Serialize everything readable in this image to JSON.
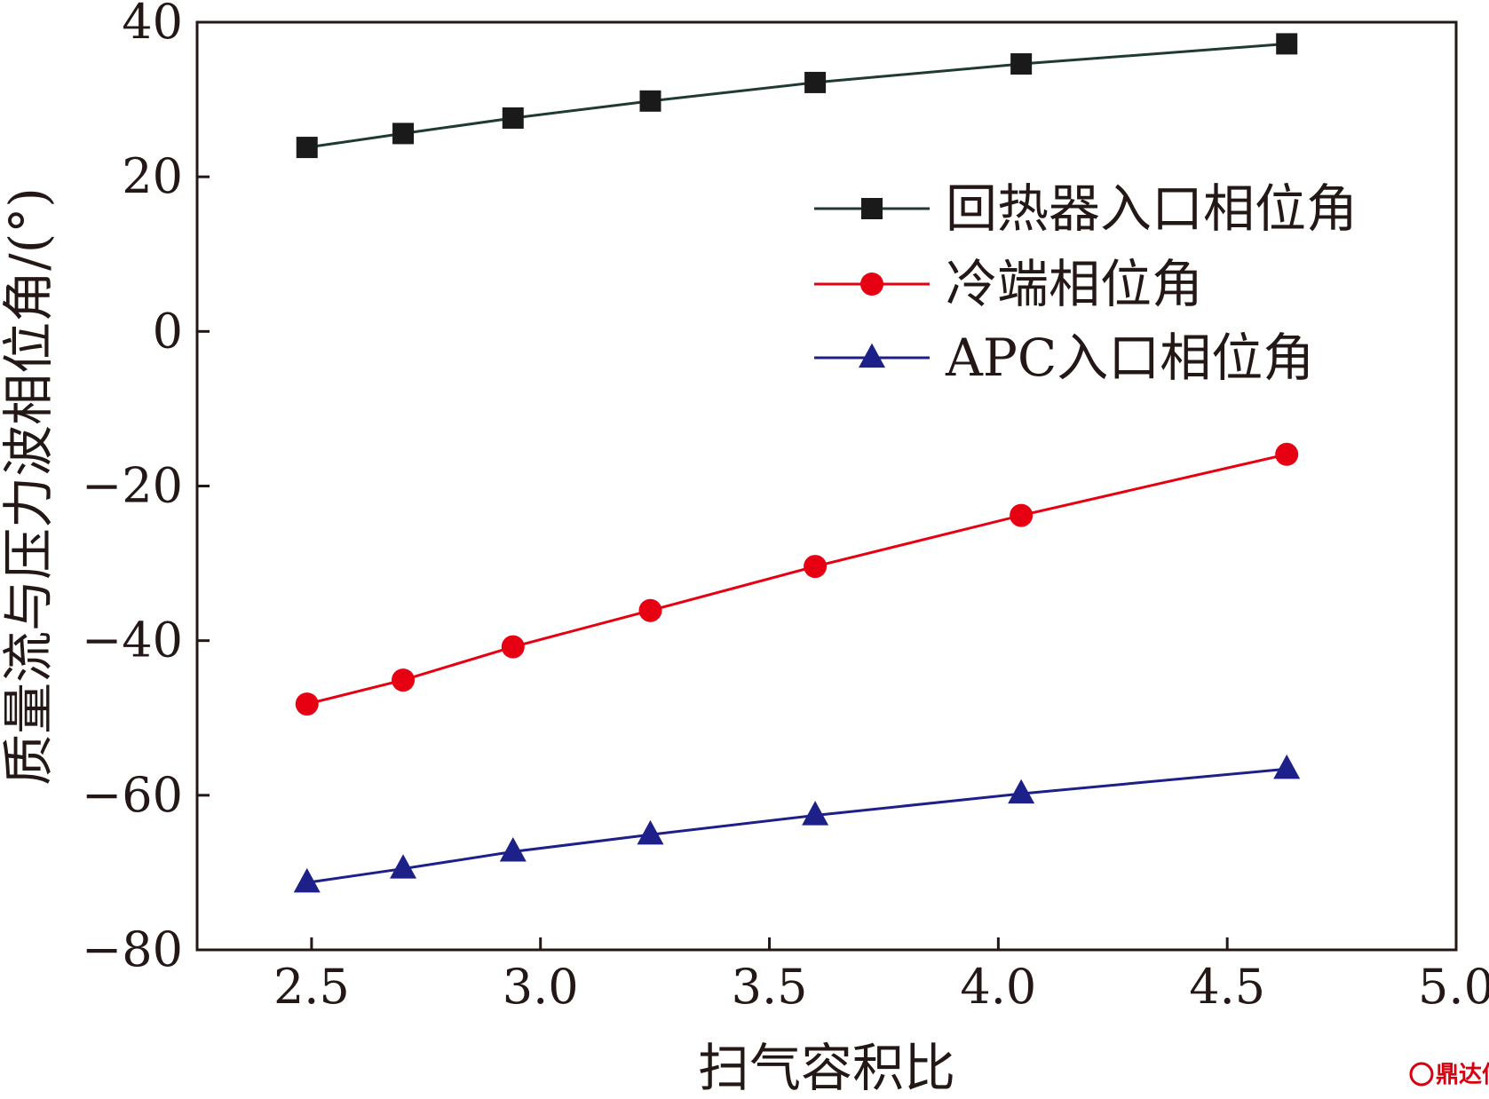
{
  "chart_data": {
    "type": "line",
    "xlabel": "扫气容积比",
    "ylabel": "质量流与压力波相位角/(°)",
    "xlim": [
      2.25,
      5.0
    ],
    "ylim": [
      -80,
      40
    ],
    "xticks": [
      "2.5",
      "3.0",
      "3.5",
      "4.0",
      "4.5",
      "5.0"
    ],
    "yticks": [
      "40",
      "20",
      "0",
      "−20",
      "−40",
      "−60",
      "−80"
    ],
    "x": [
      2.49,
      2.7,
      2.94,
      3.24,
      3.6,
      4.05,
      4.63
    ],
    "series": [
      {
        "name": "回热器入口相位角",
        "marker": "square",
        "color": "#1a1a1a",
        "line_color": "#1f3a34",
        "values": [
          23.8,
          25.6,
          27.6,
          29.8,
          32.2,
          34.6,
          37.2
        ]
      },
      {
        "name": "冷端相位角",
        "marker": "circle",
        "color": "#e60012",
        "line_color": "#e60012",
        "values": [
          -48.2,
          -45.1,
          -40.8,
          -36.1,
          -30.4,
          -23.8,
          -15.9
        ]
      },
      {
        "name": "APC入口相位角",
        "marker": "triangle",
        "color": "#1d2088",
        "line_color": "#1d2088",
        "values": [
          -71.3,
          -69.5,
          -67.3,
          -65.1,
          -62.6,
          -59.8,
          -56.6
        ]
      }
    ],
    "legend_position": "upper-right",
    "grid": false
  },
  "watermark": {
    "text": "鼎达信",
    "color": "#d7000f"
  }
}
